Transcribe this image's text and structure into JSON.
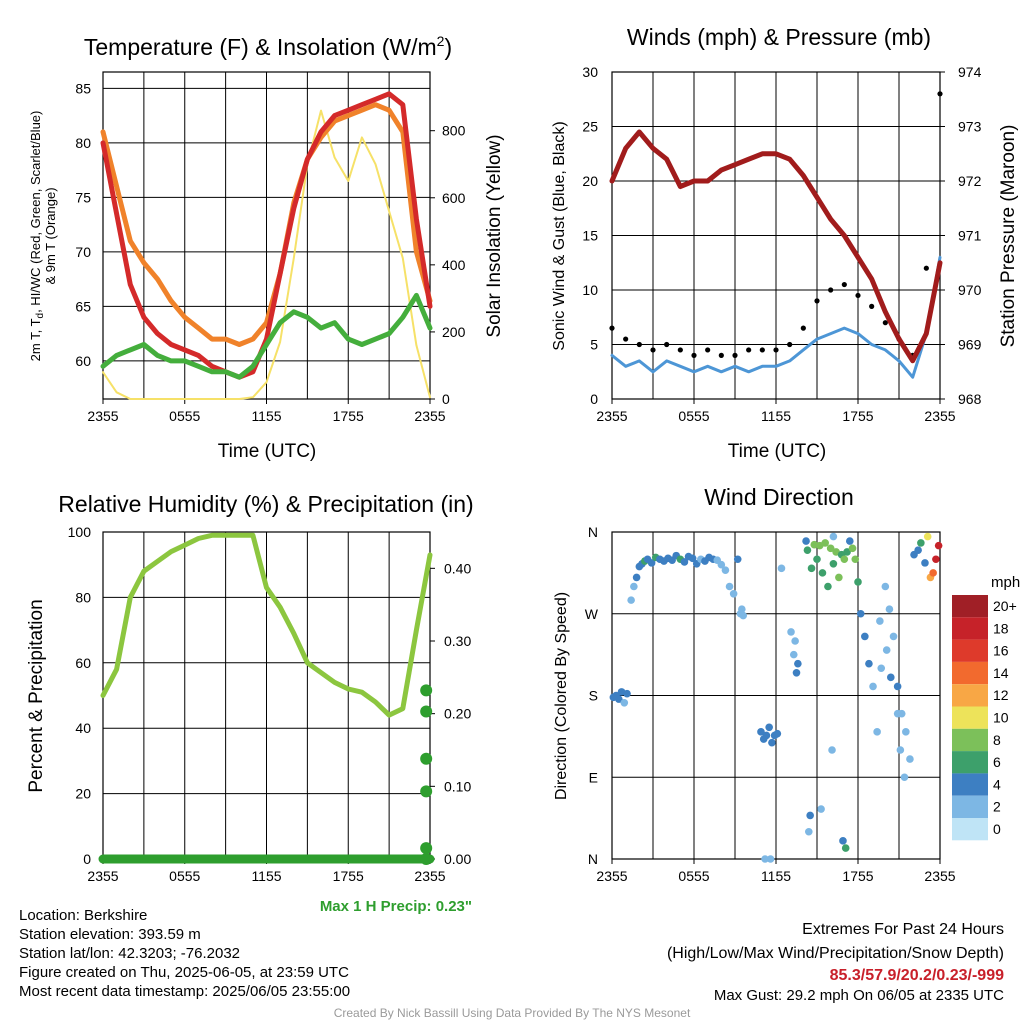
{
  "colors": {
    "temp": "#d42a2a",
    "dewpoint": "#44ae3c",
    "temp9m": "#f0822a",
    "solar": "#f6e168",
    "wind": "#4d96d6",
    "gust": "#000000",
    "pressure": "#a11c1c",
    "rh": "#8cc63f",
    "precip": "#2e9e2e",
    "max_precip_text": "#2e9e2e",
    "extremes_text": "#c8202a",
    "credit_text": "#9a9a9a"
  },
  "chart_data": [
    {
      "id": "temp",
      "type": "line",
      "title": "Temperature (F) & Insolation (W/m²)",
      "xlabel": "Time (UTC)",
      "ylabel_lines": [
        "2m T, Td, HI/WC (Red, Green, Scarlet/Blue)",
        "& 9m T (Orange)"
      ],
      "y2label": "Solar Insolation (Yellow)",
      "x_ticks": [
        "2355",
        "0555",
        "1155",
        "1755",
        "2355"
      ],
      "ylim": [
        56.5,
        86.5
      ],
      "y_ticks": [
        60,
        65,
        70,
        75,
        80,
        85
      ],
      "y2lim": [
        0,
        975
      ],
      "y2_ticks": [
        0,
        200,
        400,
        600,
        800
      ],
      "grid": true,
      "x_hours": [
        0,
        1,
        2,
        3,
        4,
        5,
        6,
        7,
        8,
        9,
        10,
        11,
        12,
        13,
        14,
        15,
        16,
        17,
        18,
        19,
        20,
        21,
        22,
        23,
        24
      ],
      "series": [
        {
          "values": [
            80.0,
            73.5,
            67.0,
            64.0,
            62.5,
            61.5,
            61.0,
            60.5,
            59.5,
            59.0,
            58.5,
            59.0,
            62.0,
            68.0,
            74.0,
            78.5,
            81.0,
            82.5,
            83.0,
            83.5,
            84.0,
            84.5,
            83.5,
            73.0,
            65.0
          ]
        },
        {
          "values": [
            59.5,
            60.5,
            61.0,
            61.5,
            60.5,
            60.0,
            60.0,
            59.5,
            59.0,
            59.0,
            58.5,
            59.5,
            61.5,
            63.5,
            64.5,
            64.0,
            63.0,
            63.5,
            62.0,
            61.5,
            62.0,
            62.5,
            64.0,
            66.0,
            63.0
          ]
        },
        {
          "values": [
            81.0,
            76.0,
            71.0,
            69.0,
            67.5,
            65.5,
            64.0,
            63.0,
            62.0,
            62.0,
            61.5,
            62.0,
            63.5,
            68.0,
            74.5,
            78.5,
            80.5,
            82.0,
            82.5,
            83.0,
            83.5,
            83.0,
            81.0,
            70.0,
            65.5
          ]
        },
        {
          "values": [
            80,
            20,
            0,
            0,
            0,
            0,
            0,
            0,
            0,
            0,
            0,
            5,
            50,
            170,
            420,
            700,
            860,
            720,
            650,
            780,
            700,
            560,
            420,
            160,
            5
          ]
        }
      ]
    },
    {
      "id": "wind",
      "type": "line",
      "title": "Winds (mph) & Pressure (mb)",
      "xlabel": "Time (UTC)",
      "ylabel": "Sonic Wind & Gust (Blue, Black)",
      "y2label": "Station Pressure (Maroon)",
      "x_ticks": [
        "2355",
        "0555",
        "1155",
        "1755",
        "2355"
      ],
      "ylim": [
        0,
        30
      ],
      "y_ticks": [
        0,
        5,
        10,
        15,
        20,
        25,
        30
      ],
      "y2lim": [
        968,
        974
      ],
      "y2_ticks": [
        968,
        969,
        970,
        971,
        972,
        973,
        974
      ],
      "grid": true,
      "x_hours": [
        0,
        1,
        2,
        3,
        4,
        5,
        6,
        7,
        8,
        9,
        10,
        11,
        12,
        13,
        14,
        15,
        16,
        17,
        18,
        19,
        20,
        21,
        22,
        23,
        24
      ],
      "series": [
        {
          "values": [
            4.0,
            3.0,
            3.5,
            2.5,
            3.5,
            3.0,
            2.5,
            3.0,
            2.5,
            3.0,
            2.5,
            3.0,
            3.0,
            3.5,
            4.5,
            5.5,
            6.0,
            6.5,
            6.0,
            5.0,
            4.5,
            3.5,
            2.0,
            6.0,
            13.0
          ]
        },
        {
          "values": [
            6.5,
            5.5,
            5.0,
            4.5,
            5.0,
            4.5,
            4.0,
            4.5,
            4.0,
            4.0,
            4.5,
            4.5,
            4.5,
            5.0,
            6.5,
            9.0,
            10.0,
            10.5,
            9.5,
            8.5,
            7.0,
            5.5,
            4.0,
            12.0,
            28.0
          ]
        },
        {
          "values": [
            972.0,
            972.6,
            972.9,
            972.6,
            972.4,
            971.9,
            972.0,
            972.0,
            972.2,
            972.3,
            972.4,
            972.5,
            972.5,
            972.4,
            972.1,
            971.7,
            971.3,
            971.0,
            970.6,
            970.2,
            969.6,
            969.1,
            968.7,
            969.2,
            970.5
          ]
        }
      ]
    },
    {
      "id": "rh",
      "type": "line",
      "title": "Relative Humidity (%) & Precipitation (in)",
      "ylabel": "Percent & Precipitation",
      "x_ticks": [
        "2355",
        "0555",
        "1155",
        "1755",
        "2355"
      ],
      "ylim": [
        0,
        100
      ],
      "y_ticks": [
        0,
        20,
        40,
        60,
        80,
        100
      ],
      "y2lim": [
        0,
        0.45
      ],
      "y2_ticks": [
        "0.00",
        "0.10",
        "0.20",
        "0.30",
        "0.40"
      ],
      "grid": true,
      "annotation": "Max 1 H Precip: 0.23\"",
      "x_hours": [
        0,
        1,
        2,
        3,
        4,
        5,
        6,
        7,
        8,
        9,
        10,
        11,
        12,
        13,
        14,
        15,
        16,
        17,
        18,
        19,
        20,
        21,
        22,
        23,
        24
      ],
      "series": [
        {
          "values": [
            50,
            58,
            80,
            88,
            91,
            94,
            96,
            98,
            99,
            99,
            99,
            99,
            83,
            77,
            69,
            60,
            57,
            54,
            52,
            51,
            48,
            44,
            46,
            70,
            93
          ]
        }
      ],
      "precip_x_hours": [
        23.5,
        23.5,
        23.5,
        23.5,
        23.5,
        23.5
      ],
      "precip_values": [
        0.015,
        0.093,
        0.138,
        0.203,
        0.232,
        0.0
      ]
    },
    {
      "id": "dir",
      "type": "scatter",
      "title": "Wind Direction",
      "ylabel": "Direction (Colored By Speed)",
      "x_ticks": [
        "2355",
        "0555",
        "1155",
        "1755",
        "2355"
      ],
      "y_tick_labels": [
        "N",
        "E",
        "S",
        "W",
        "N"
      ],
      "ylim": [
        0,
        360
      ],
      "grid": true,
      "legend_title": "mph",
      "legend_labels": [
        "20+",
        "18",
        "16",
        "14",
        "12",
        "10",
        "8",
        "6",
        "4",
        "2",
        "0"
      ],
      "legend_colors": [
        "#a01f26",
        "#c62229",
        "#de3a2b",
        "#f26a2e",
        "#f8a745",
        "#ede35a",
        "#7cc05a",
        "#3da06b",
        "#3d7fc2",
        "#7db7e4",
        "#bfe4f6"
      ],
      "points_hour": [
        0.1,
        0.3,
        0.5,
        0.7,
        0.9,
        1.1,
        1.4,
        1.6,
        1.8,
        2.0,
        2.2,
        2.4,
        2.6,
        2.9,
        3.2,
        3.5,
        3.8,
        4.1,
        4.4,
        4.7,
        5.0,
        5.3,
        5.6,
        5.9,
        6.2,
        6.5,
        6.8,
        7.1,
        7.4,
        7.7,
        8.0,
        8.3,
        8.6,
        8.9,
        9.2,
        9.5,
        9.6,
        9.4,
        10.9,
        11.1,
        11.3,
        11.5,
        11.7,
        11.9,
        12.1,
        11.2,
        11.6,
        12.4,
        13.1,
        13.4,
        13.6,
        13.3,
        13.5,
        14.2,
        14.3,
        14.6,
        14.8,
        15.0,
        15.2,
        15.4,
        15.6,
        15.8,
        16.0,
        16.2,
        16.4,
        16.6,
        16.8,
        17.0,
        17.2,
        14.5,
        15.3,
        16.1,
        17.4,
        17.6,
        17.8,
        18.0,
        18.2,
        18.5,
        18.8,
        19.1,
        19.4,
        19.7,
        20.0,
        20.3,
        20.6,
        20.9,
        21.2,
        21.5,
        21.8,
        19.6,
        20.1,
        20.4,
        20.9,
        21.1,
        21.4,
        22.1,
        22.4,
        22.6,
        22.9,
        23.1,
        23.3,
        23.5,
        23.7,
        23.9,
        16.9,
        17.1,
        16.2,
        14.4
      ],
      "points_dir": [
        178,
        180,
        176,
        184,
        172,
        182,
        285,
        300,
        310,
        322,
        325,
        328,
        330,
        326,
        332,
        330,
        328,
        331,
        329,
        334,
        330,
        327,
        333,
        331,
        325,
        330,
        328,
        332,
        330,
        329,
        324,
        318,
        300,
        292,
        330,
        275,
        268,
        270,
        140,
        132,
        136,
        145,
        128,
        136,
        138,
        0,
        0,
        320,
        250,
        240,
        215,
        225,
        205,
        350,
        340,
        320,
        346,
        330,
        345,
        315,
        348,
        300,
        342,
        325,
        338,
        310,
        335,
        330,
        338,
        48,
        55,
        120,
        350,
        342,
        330,
        305,
        270,
        245,
        215,
        190,
        140,
        210,
        300,
        275,
        245,
        190,
        160,
        140,
        110,
        262,
        230,
        200,
        160,
        120,
        90,
        335,
        340,
        348,
        326,
        355,
        310,
        315,
        330,
        345,
        20,
        12,
        355,
        30
      ],
      "points_speed": [
        3,
        3,
        4,
        3,
        2,
        3,
        2,
        2,
        3,
        4,
        4,
        5,
        4,
        4,
        5,
        4,
        3,
        4,
        4,
        4,
        5,
        3,
        4,
        4,
        3,
        2,
        3,
        4,
        3,
        2,
        2,
        2,
        2,
        2,
        3,
        2,
        1,
        2,
        3,
        3,
        3,
        3,
        3,
        4,
        3,
        1,
        1,
        2,
        2,
        2,
        3,
        2,
        3,
        4,
        5,
        6,
        7,
        6,
        7,
        5,
        8,
        6,
        7,
        5,
        8,
        7,
        6,
        7,
        6,
        3,
        2,
        1,
        3,
        8,
        7,
        6,
        4,
        3,
        3,
        2,
        2,
        1,
        2,
        2,
        2,
        3,
        1,
        2,
        2,
        2,
        2,
        3,
        2,
        2,
        2,
        4,
        3,
        6,
        4,
        9,
        11,
        14,
        17,
        18,
        4,
        5,
        2,
        2
      ]
    }
  ],
  "info": {
    "location": "Location: Berkshire",
    "elevation": "Station elevation: 393.59 m",
    "latlon": "Station lat/lon: 42.3203; -76.2032",
    "created": "Figure created on Thu, 2025-06-05, at 23:59 UTC",
    "recent": "Most recent data timestamp: 2025/06/05 23:55:00"
  },
  "extremes": {
    "title": "Extremes For Past 24 Hours",
    "subtitle": "(High/Low/Max Wind/Precipitation/Snow Depth)",
    "values": "85.3/57.9/20.2/0.23/-999",
    "max_gust": "Max Gust: 29.2 mph On 06/05 at 2335 UTC"
  },
  "credit": "Created By Nick Bassill Using Data Provided By The NYS Mesonet"
}
